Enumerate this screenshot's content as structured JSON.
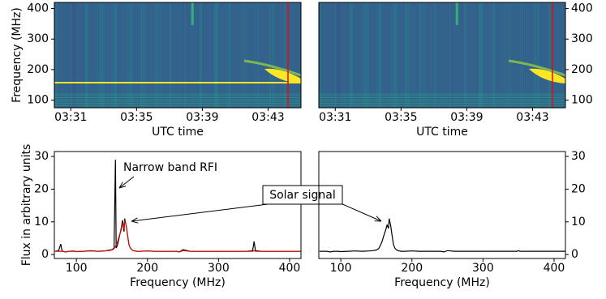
{
  "chart_data": [
    {
      "type": "heatmap",
      "ylabel": "Frequency (MHz)",
      "xlabel": "UTC time",
      "xlim": [
        "03:30",
        "03:45"
      ],
      "xticks": [
        "03:31",
        "03:35",
        "03:39",
        "03:43"
      ],
      "ylim": [
        75,
        420
      ],
      "yticks": [
        100,
        200,
        300,
        400
      ],
      "yaxis": "left"
    },
    {
      "type": "heatmap",
      "xlabel": "UTC time",
      "xlim": [
        "03:30",
        "03:45"
      ],
      "xticks": [
        "03:31",
        "03:35",
        "03:39",
        "03:43"
      ],
      "ylim": [
        75,
        420
      ],
      "yticks": [
        100,
        200,
        300,
        400
      ],
      "yaxis": "right"
    },
    {
      "type": "line",
      "xlabel": "Frequency (MHz)",
      "ylabel": "Flux in arbitrary units",
      "x": [
        70,
        75,
        78,
        80,
        85,
        90,
        95,
        100,
        110,
        120,
        130,
        140,
        145,
        150,
        153,
        155,
        156,
        158,
        160,
        163,
        165,
        167,
        168,
        170,
        172,
        174,
        176,
        178,
        180,
        185,
        190,
        200,
        210,
        220,
        230,
        240,
        245,
        250,
        260,
        280,
        300,
        320,
        340,
        348,
        350,
        352,
        360,
        380,
        400,
        416
      ],
      "series": [
        {
          "color": "#000000",
          "values": [
            1,
            1.2,
            3.2,
            1,
            0.8,
            1,
            1.1,
            0.9,
            1,
            1.2,
            1,
            1.1,
            1.3,
            1.5,
            2,
            29,
            2,
            3,
            5,
            8,
            10.5,
            7,
            11,
            9,
            6,
            3,
            2,
            1.5,
            1.2,
            1,
            1,
            1.1,
            1,
            1,
            1,
            1,
            0.8,
            1.5,
            1,
            1,
            1,
            1,
            1,
            1.2,
            4,
            1.2,
            1,
            1,
            1,
            1
          ]
        },
        {
          "color": "#cc1111",
          "values": [
            1,
            1,
            1,
            1,
            0.8,
            1,
            1,
            0.9,
            1,
            1.1,
            1,
            1.1,
            1.2,
            1.4,
            1.8,
            2.5,
            3,
            4,
            5.5,
            7.5,
            9.5,
            8,
            10.5,
            9,
            6,
            3,
            2,
            1.5,
            1.2,
            1,
            1,
            1.1,
            1,
            1,
            1,
            1,
            0.8,
            1.2,
            1,
            1,
            1,
            1,
            1,
            1,
            1.2,
            1,
            1,
            1,
            1,
            1
          ]
        }
      ],
      "xlim": [
        69,
        416
      ],
      "xticks": [
        100,
        200,
        300,
        400
      ],
      "ylim": [
        -1.2,
        31.5
      ],
      "yticks": [
        0,
        10,
        20,
        30
      ],
      "yaxis": "left",
      "annotations": [
        "Narrow band RFI",
        "Solar signal"
      ]
    },
    {
      "type": "line",
      "xlabel": "Frequency (MHz)",
      "x": [
        70,
        75,
        78,
        80,
        85,
        90,
        95,
        100,
        110,
        120,
        130,
        140,
        145,
        150,
        153,
        155,
        156,
        158,
        160,
        163,
        165,
        167,
        168,
        170,
        172,
        174,
        176,
        178,
        180,
        185,
        190,
        200,
        210,
        220,
        230,
        240,
        245,
        250,
        260,
        280,
        300,
        320,
        340,
        348,
        350,
        352,
        360,
        380,
        400,
        416
      ],
      "series": [
        {
          "color": "#000000",
          "values": [
            1,
            1,
            1,
            1,
            0.8,
            1,
            1,
            0.9,
            1,
            1.1,
            1,
            1.1,
            1.2,
            1.4,
            1.8,
            2.5,
            3,
            4,
            5.5,
            7.5,
            9,
            8,
            11,
            9,
            6,
            3,
            2,
            1.5,
            1.2,
            1,
            1,
            1.1,
            1,
            1,
            1,
            1,
            0.8,
            1.2,
            1,
            1,
            1,
            1,
            1,
            1,
            1.2,
            1,
            1,
            1,
            1,
            1
          ]
        }
      ],
      "xlim": [
        69,
        416
      ],
      "xticks": [
        100,
        200,
        300,
        400
      ],
      "ylim": [
        -1.2,
        31.5
      ],
      "yticks": [
        0,
        10,
        20,
        30
      ],
      "yaxis": "right"
    }
  ]
}
